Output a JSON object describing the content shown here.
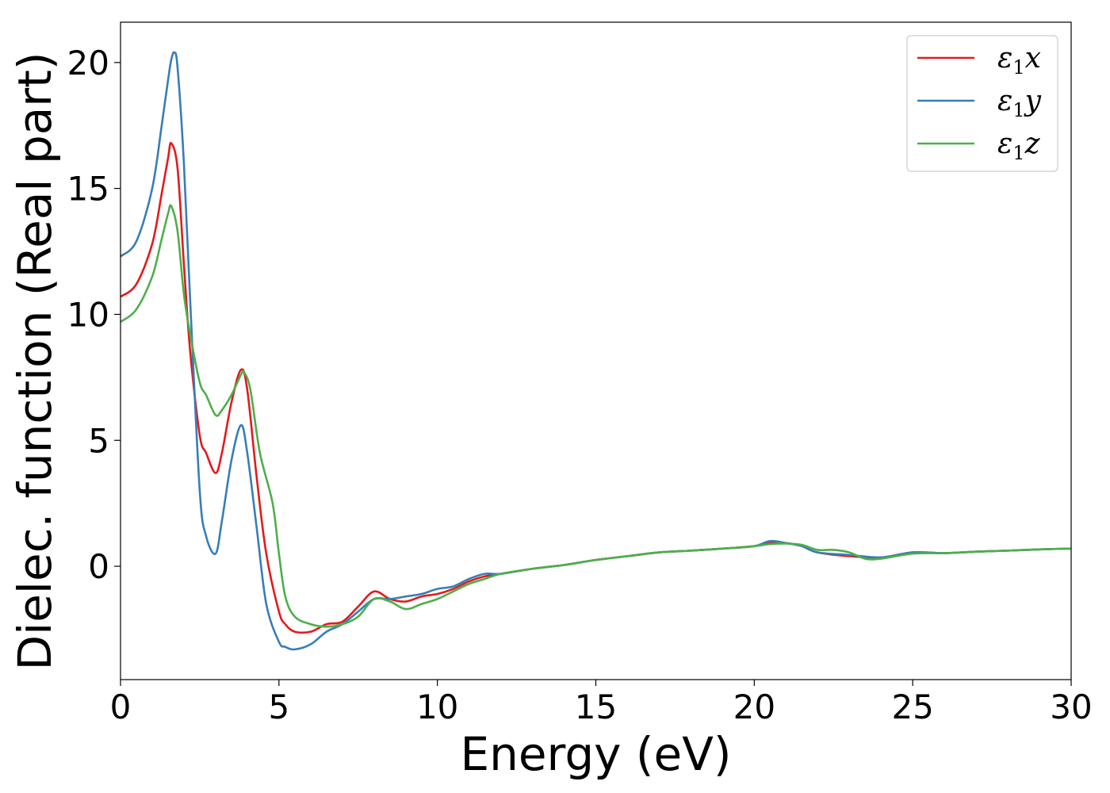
{
  "chart_data": {
    "type": "line",
    "title": "",
    "xlabel": "Energy (eV)",
    "ylabel": "Dielec. function (Real part)",
    "xlim": [
      0,
      30
    ],
    "ylim": [
      -4.5,
      21.6
    ],
    "xticks": [
      0,
      5,
      10,
      15,
      20,
      25,
      30
    ],
    "yticks": [
      0,
      5,
      10,
      15,
      20
    ],
    "grid": false,
    "legend_position": "top-right",
    "series": [
      {
        "name": "ε₁x",
        "symbol": "ε",
        "subscript": "1",
        "axis": "x",
        "color": "#e41a1c",
        "x": [
          0,
          0.5,
          1,
          1.3,
          1.5,
          1.6,
          1.8,
          2.0,
          2.2,
          2.5,
          2.7,
          3.0,
          3.2,
          3.5,
          3.8,
          4.0,
          4.3,
          4.6,
          5.0,
          5.2,
          5.5,
          6.0,
          6.5,
          7.0,
          7.5,
          8.0,
          8.5,
          9.0,
          9.5,
          10,
          10.5,
          11,
          11.5,
          12,
          13,
          14,
          15,
          16,
          17,
          18,
          19,
          20,
          20.5,
          21,
          21.5,
          22,
          23,
          24,
          25,
          26,
          27,
          28,
          29,
          30
        ],
        "y": [
          10.7,
          11.2,
          12.8,
          14.8,
          16.2,
          16.8,
          15.8,
          12.0,
          8.5,
          5.2,
          4.5,
          3.7,
          4.5,
          6.5,
          7.8,
          7.0,
          3.5,
          0.5,
          -1.8,
          -2.3,
          -2.6,
          -2.6,
          -2.3,
          -2.2,
          -1.6,
          -1.0,
          -1.3,
          -1.4,
          -1.2,
          -1.1,
          -0.9,
          -0.6,
          -0.4,
          -0.3,
          -0.1,
          0.05,
          0.25,
          0.4,
          0.55,
          0.62,
          0.7,
          0.8,
          0.95,
          0.92,
          0.8,
          0.55,
          0.4,
          0.35,
          0.55,
          0.52,
          0.58,
          0.62,
          0.67,
          0.7
        ]
      },
      {
        "name": "ε₁y",
        "symbol": "ε",
        "subscript": "1",
        "axis": "y",
        "color": "#377eb8",
        "x": [
          0,
          0.5,
          1,
          1.3,
          1.5,
          1.6,
          1.7,
          1.8,
          2.0,
          2.2,
          2.5,
          2.7,
          3.0,
          3.2,
          3.5,
          3.8,
          4.0,
          4.3,
          4.6,
          5.0,
          5.2,
          5.5,
          6.0,
          6.5,
          7.0,
          7.5,
          8.0,
          8.5,
          9.0,
          9.5,
          10,
          10.5,
          11,
          11.5,
          12,
          13,
          14,
          15,
          16,
          17,
          18,
          19,
          20,
          20.5,
          21,
          21.5,
          22,
          23,
          24,
          25,
          26,
          27,
          28,
          29,
          30
        ],
        "y": [
          12.3,
          12.9,
          15.0,
          17.5,
          19.3,
          20.1,
          20.4,
          19.8,
          16.0,
          10.5,
          3.0,
          1.2,
          0.5,
          1.8,
          4.2,
          5.6,
          4.5,
          1.5,
          -1.5,
          -3.0,
          -3.2,
          -3.3,
          -3.1,
          -2.6,
          -2.3,
          -1.8,
          -1.3,
          -1.3,
          -1.2,
          -1.1,
          -0.9,
          -0.8,
          -0.5,
          -0.3,
          -0.3,
          -0.1,
          0.05,
          0.25,
          0.4,
          0.55,
          0.62,
          0.7,
          0.8,
          1.0,
          0.92,
          0.8,
          0.55,
          0.45,
          0.35,
          0.55,
          0.52,
          0.58,
          0.62,
          0.67,
          0.7
        ]
      },
      {
        "name": "ε₁z",
        "symbol": "ε",
        "subscript": "1",
        "axis": "z",
        "color": "#4daf4a",
        "x": [
          0,
          0.5,
          1,
          1.3,
          1.5,
          1.6,
          1.8,
          2.0,
          2.2,
          2.5,
          2.7,
          3.0,
          3.2,
          3.5,
          3.8,
          3.9,
          4.1,
          4.4,
          4.8,
          5.0,
          5.2,
          5.5,
          6.0,
          6.5,
          7.0,
          7.5,
          8.0,
          8.5,
          9.0,
          9.5,
          10,
          10.5,
          11,
          11.5,
          12,
          13,
          14,
          15,
          16,
          17,
          18,
          19,
          20,
          20.5,
          21,
          21.5,
          22,
          22.5,
          23,
          23.5,
          24,
          25,
          26,
          27,
          28,
          29,
          30
        ],
        "y": [
          9.7,
          10.2,
          11.5,
          13.0,
          14.0,
          14.3,
          13.3,
          10.8,
          9.2,
          7.3,
          6.8,
          6.0,
          6.2,
          6.8,
          7.6,
          7.7,
          7.0,
          4.5,
          2.5,
          0.5,
          -1.2,
          -2.0,
          -2.3,
          -2.4,
          -2.3,
          -2.0,
          -1.3,
          -1.4,
          -1.7,
          -1.5,
          -1.3,
          -1.0,
          -0.7,
          -0.5,
          -0.3,
          -0.1,
          0.05,
          0.25,
          0.4,
          0.55,
          0.62,
          0.7,
          0.8,
          0.88,
          0.9,
          0.85,
          0.65,
          0.65,
          0.55,
          0.3,
          0.3,
          0.5,
          0.52,
          0.58,
          0.62,
          0.67,
          0.7
        ]
      }
    ]
  }
}
